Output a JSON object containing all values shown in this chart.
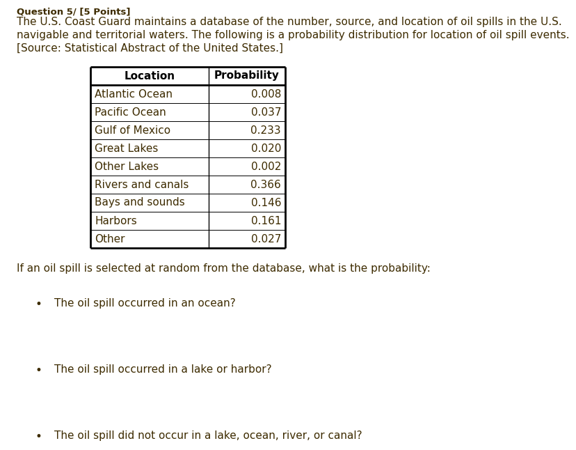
{
  "header_text": "Question 5/ [5 Points]",
  "intro_text_line1": "The U.S. Coast Guard maintains a database of the number, source, and location of oil spills in the U.S.",
  "intro_text_line2": "navigable and territorial waters. The following is a probability distribution for location of oil spill events.",
  "intro_text_line3": "[Source: Statistical Abstract of the United States.]",
  "col_headers": [
    "Location",
    "Probability"
  ],
  "locations": [
    "Atlantic Ocean",
    "Pacific Ocean",
    "Gulf of Mexico",
    "Great Lakes",
    "Other Lakes",
    "Rivers and canals",
    "Bays and sounds",
    "Harbors",
    "Other"
  ],
  "probabilities": [
    0.008,
    0.037,
    0.233,
    0.02,
    0.002,
    0.366,
    0.146,
    0.161,
    0.027
  ],
  "question_text": "If an oil spill is selected at random from the database, what is the probability:",
  "bullet_questions": [
    "The oil spill occurred in an ocean?",
    "The oil spill occurred in a lake or harbor?",
    "The oil spill did not occur in a lake, ocean, river, or canal?"
  ],
  "text_color": "#3d2b00",
  "bg_color": "#ffffff",
  "table_line_color": "#000000",
  "font_size_body": 11.0,
  "font_size_table": 11.0
}
